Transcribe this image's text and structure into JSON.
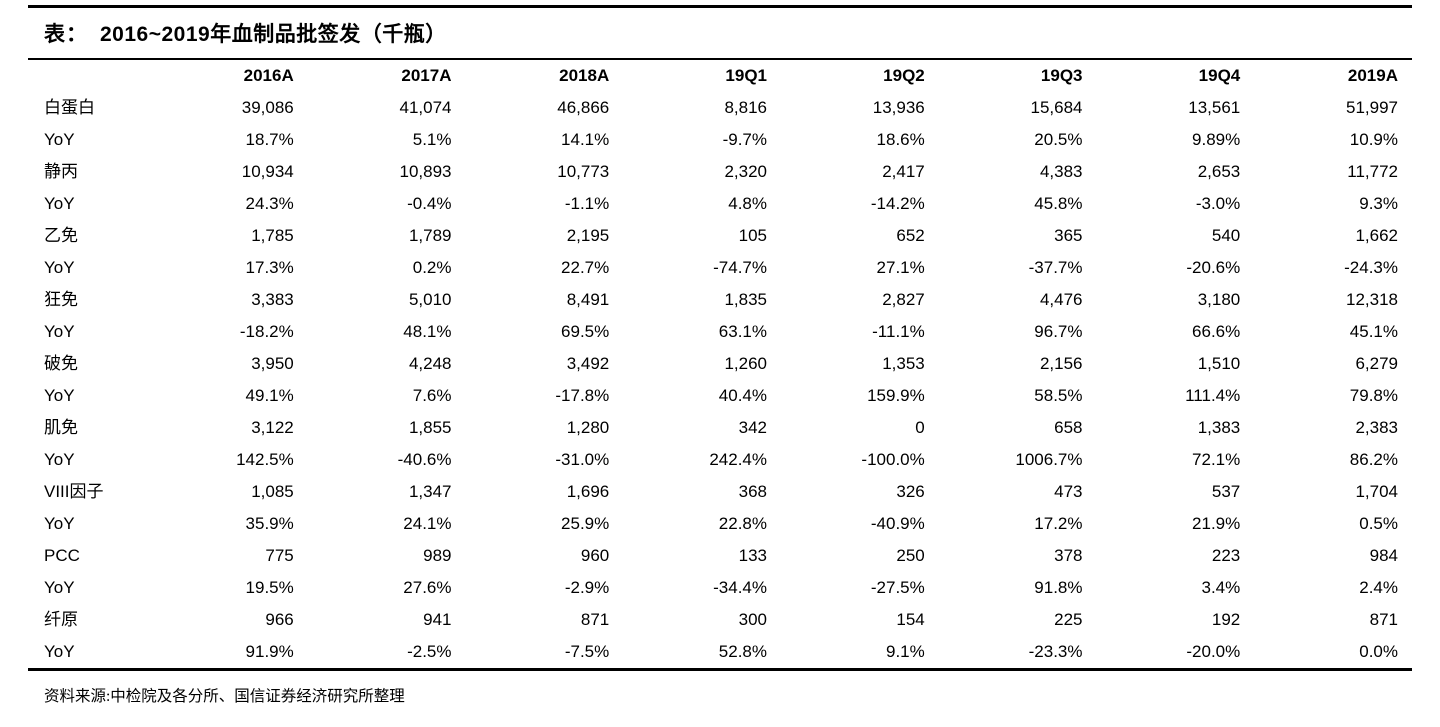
{
  "title": {
    "prefix": "表：",
    "text": "2016~2019年血制品批签发（千瓶）"
  },
  "table": {
    "columns": [
      "2016A",
      "2017A",
      "2018A",
      "19Q1",
      "19Q2",
      "19Q3",
      "19Q4",
      "2019A"
    ],
    "rows": [
      {
        "label": "白蛋白",
        "values": [
          "39,086",
          "41,074",
          "46,866",
          "8,816",
          "13,936",
          "15,684",
          "13,561",
          "51,997"
        ]
      },
      {
        "label": "YoY",
        "values": [
          "18.7%",
          "5.1%",
          "14.1%",
          "-9.7%",
          "18.6%",
          "20.5%",
          "9.89%",
          "10.9%"
        ]
      },
      {
        "label": "静丙",
        "values": [
          "10,934",
          "10,893",
          "10,773",
          "2,320",
          "2,417",
          "4,383",
          "2,653",
          "11,772"
        ]
      },
      {
        "label": "YoY",
        "values": [
          "24.3%",
          "-0.4%",
          "-1.1%",
          "4.8%",
          "-14.2%",
          "45.8%",
          "-3.0%",
          "9.3%"
        ]
      },
      {
        "label": "乙免",
        "values": [
          "1,785",
          "1,789",
          "2,195",
          "105",
          "652",
          "365",
          "540",
          "1,662"
        ]
      },
      {
        "label": "YoY",
        "values": [
          "17.3%",
          "0.2%",
          "22.7%",
          "-74.7%",
          "27.1%",
          "-37.7%",
          "-20.6%",
          "-24.3%"
        ]
      },
      {
        "label": "狂免",
        "values": [
          "3,383",
          "5,010",
          "8,491",
          "1,835",
          "2,827",
          "4,476",
          "3,180",
          "12,318"
        ]
      },
      {
        "label": "YoY",
        "values": [
          "-18.2%",
          "48.1%",
          "69.5%",
          "63.1%",
          "-11.1%",
          "96.7%",
          "66.6%",
          "45.1%"
        ]
      },
      {
        "label": "破免",
        "values": [
          "3,950",
          "4,248",
          "3,492",
          "1,260",
          "1,353",
          "2,156",
          "1,510",
          "6,279"
        ]
      },
      {
        "label": "YoY",
        "values": [
          "49.1%",
          "7.6%",
          "-17.8%",
          "40.4%",
          "159.9%",
          "58.5%",
          "111.4%",
          "79.8%"
        ]
      },
      {
        "label": "肌免",
        "values": [
          "3,122",
          "1,855",
          "1,280",
          "342",
          "0",
          "658",
          "1,383",
          "2,383"
        ]
      },
      {
        "label": "YoY",
        "values": [
          "142.5%",
          "-40.6%",
          "-31.0%",
          "242.4%",
          "-100.0%",
          "1006.7%",
          "72.1%",
          "86.2%"
        ]
      },
      {
        "label": "VIII因子",
        "values": [
          "1,085",
          "1,347",
          "1,696",
          "368",
          "326",
          "473",
          "537",
          "1,704"
        ]
      },
      {
        "label": "YoY",
        "values": [
          "35.9%",
          "24.1%",
          "25.9%",
          "22.8%",
          "-40.9%",
          "17.2%",
          "21.9%",
          "0.5%"
        ]
      },
      {
        "label": "PCC",
        "values": [
          "775",
          "989",
          "960",
          "133",
          "250",
          "378",
          "223",
          "984"
        ]
      },
      {
        "label": "YoY",
        "values": [
          "19.5%",
          "27.6%",
          "-2.9%",
          "-34.4%",
          "-27.5%",
          "91.8%",
          "3.4%",
          "2.4%"
        ]
      },
      {
        "label": "纤原",
        "values": [
          "966",
          "941",
          "871",
          "300",
          "154",
          "225",
          "192",
          "871"
        ]
      },
      {
        "label": "YoY",
        "values": [
          "91.9%",
          "-2.5%",
          "-7.5%",
          "52.8%",
          "9.1%",
          "-23.3%",
          "-20.0%",
          "0.0%"
        ]
      }
    ]
  },
  "footer": {
    "source": "资料来源:中检院及各分所、国信证券经济研究所整理"
  },
  "colors": {
    "text": "#000000",
    "rule": "#000000",
    "background": "#ffffff"
  }
}
